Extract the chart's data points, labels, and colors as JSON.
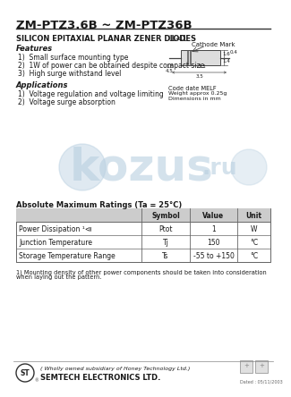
{
  "title": "ZM-PTZ3.6B ~ ZM-PTZ36B",
  "subtitle": "SILICON EPITAXIAL PLANAR ZENER DIODES",
  "package": "LL-41",
  "features_title": "Features",
  "features": [
    "1)  Small surface mounting type",
    "2)  1W of power can be obtained despite compact size",
    "3)  High surge withstand level"
  ],
  "applications_title": "Applications",
  "applications": [
    "1)  Voltage regulation and voltage limiting",
    "2)  Voltage surge absorption"
  ],
  "table_title": "Absolute Maximum Ratings (Ta = 25°C)",
  "table_headers": [
    "",
    "Symbol",
    "Value",
    "Unit"
  ],
  "table_rows": [
    [
      "Power Dissipation ¹⧏",
      "Ptot",
      "1",
      "W"
    ],
    [
      "Junction Temperature",
      "Tj",
      "150",
      "°C"
    ],
    [
      "Storage Temperature Range",
      "Ts",
      "-55 to +150",
      "°C"
    ]
  ],
  "footnote": "1) Mounting density of other power components should be taken into consideration when laying out the pattern.",
  "company_bold": "SEMTECH ELECTRONICS LTD.",
  "company_italic": "( Wholly owned subsidiary of Honey Technology Ltd.)",
  "date_label": "Dated : 05/11/2003",
  "bg_color": "#ffffff",
  "text_color": "#1a1a1a",
  "watermark_color": "#b8cfe0"
}
